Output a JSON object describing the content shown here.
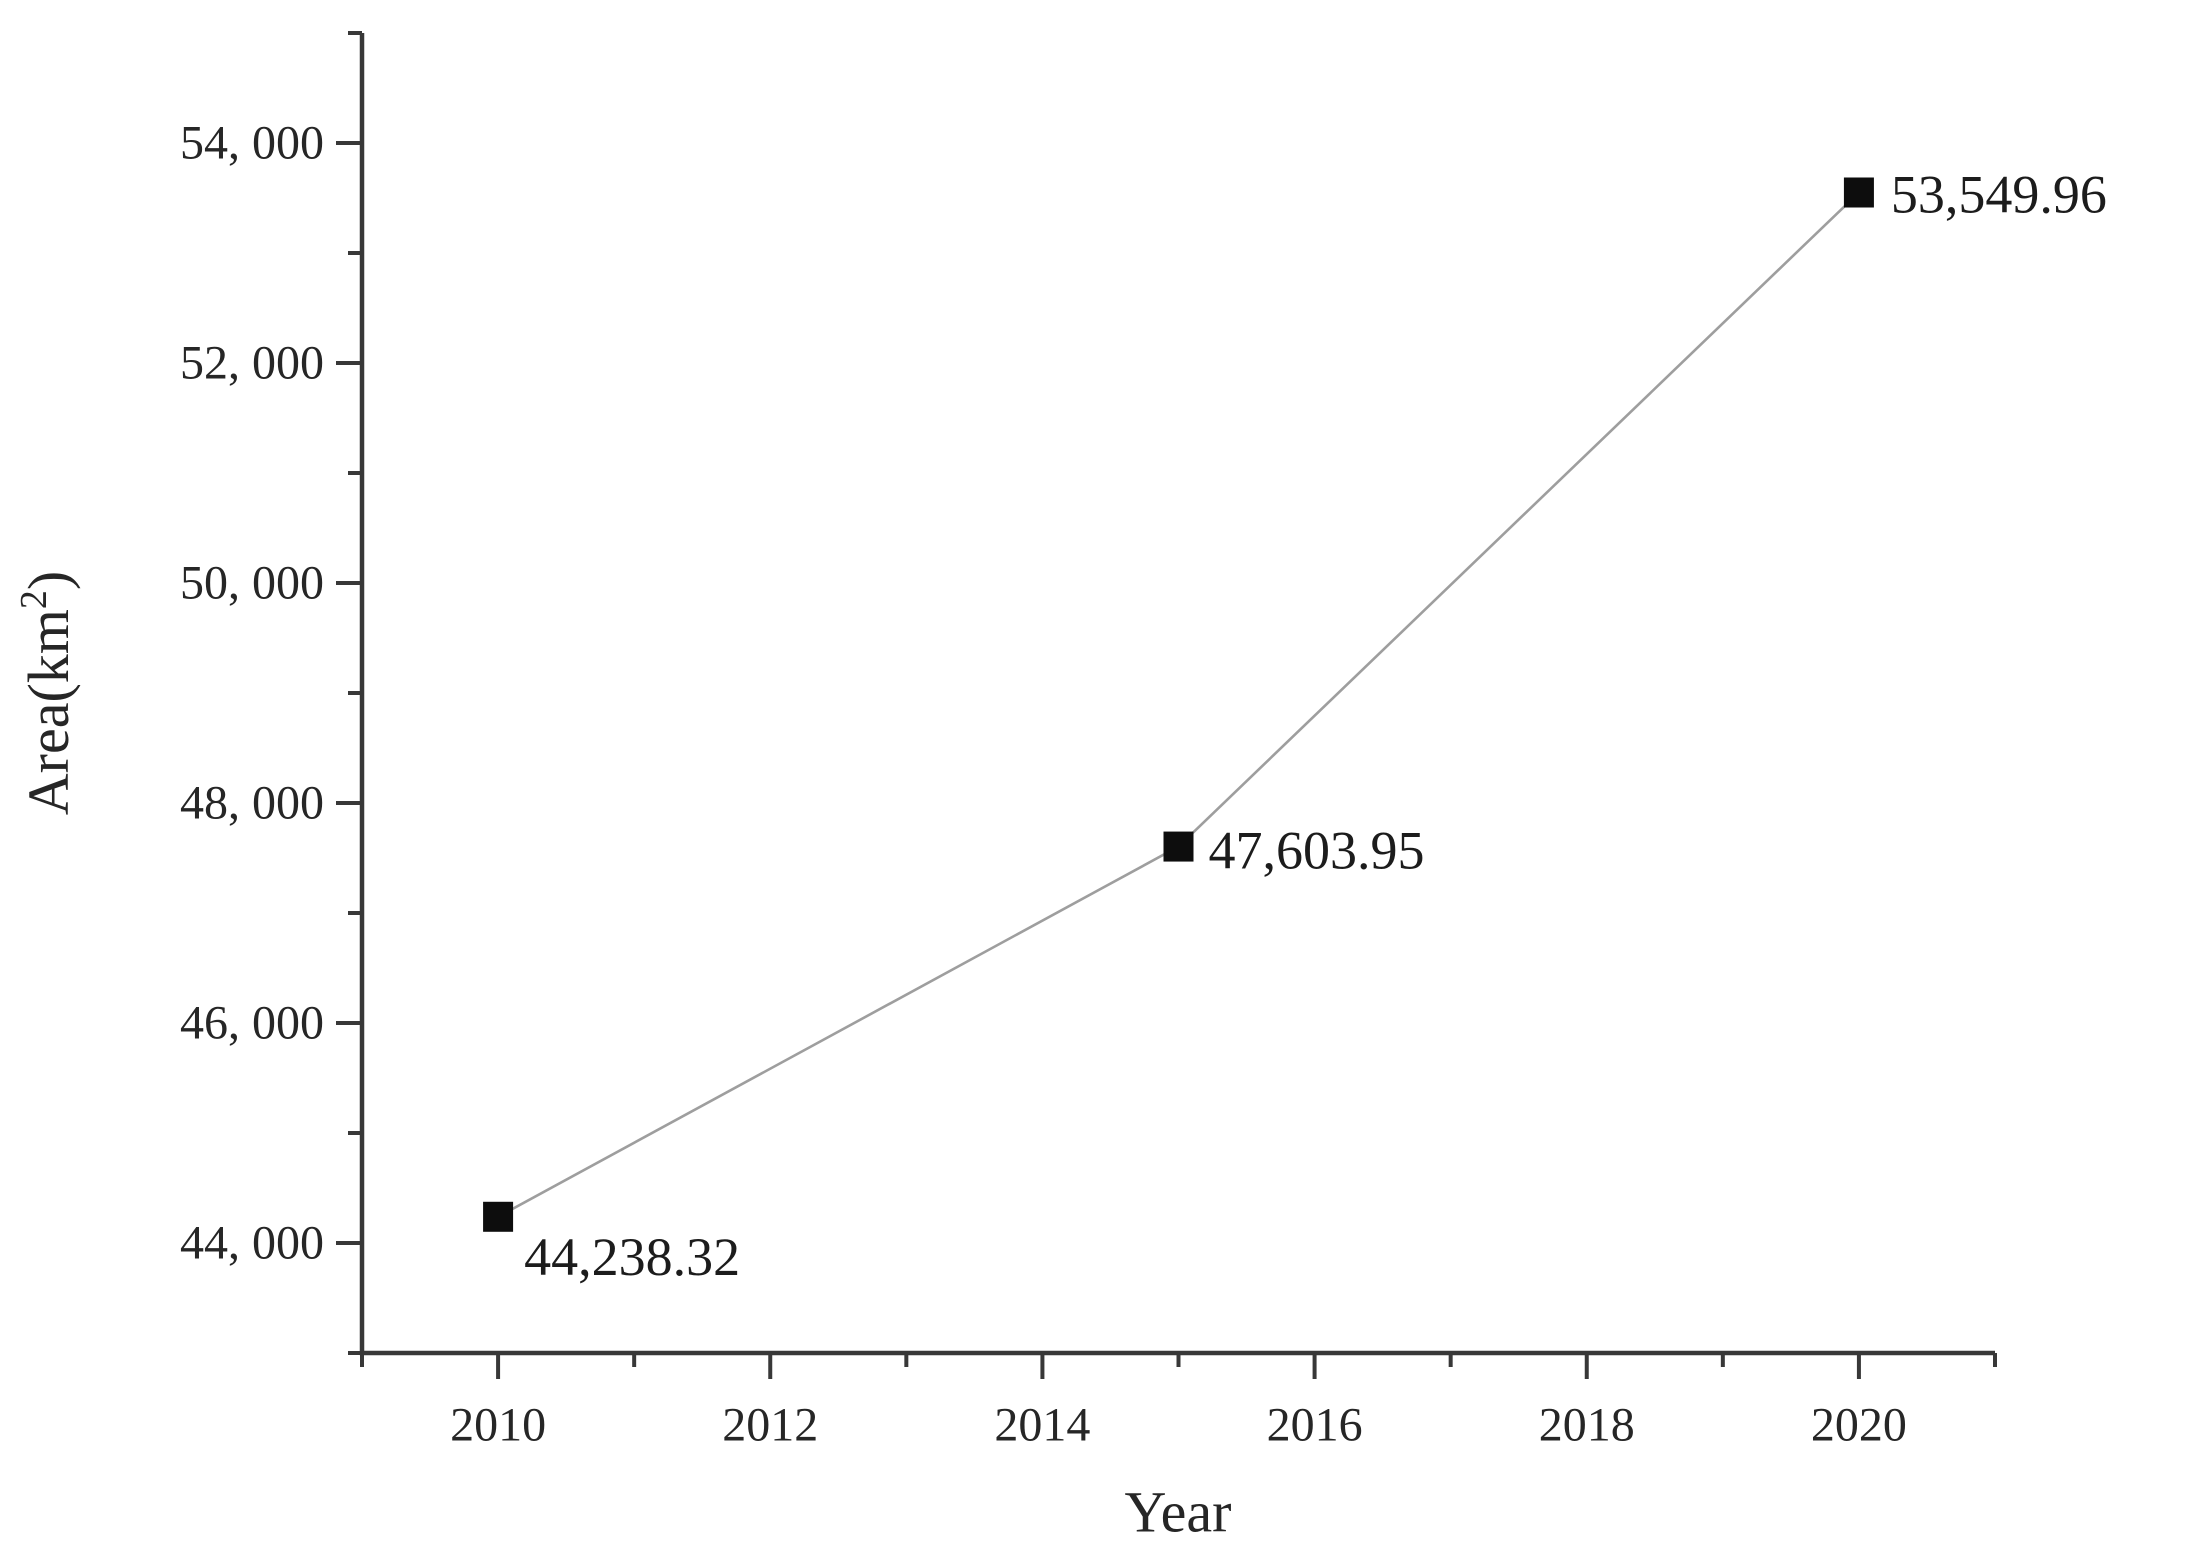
{
  "figure": {
    "background": "#ffffff"
  },
  "chart_data": {
    "type": "line",
    "title": "",
    "xlabel": "Year",
    "ylabel": "Area(km²)",
    "x": [
      2010,
      2015,
      2020
    ],
    "values": [
      44238.32,
      47603.95,
      53549.96
    ],
    "point_labels": [
      "44,238.32",
      "47,603.95",
      "53,549.96"
    ],
    "xlim": [
      2009,
      2021
    ],
    "ylim": [
      43000,
      55000
    ],
    "x_ticks": {
      "values": [
        2010,
        2012,
        2014,
        2016,
        2018,
        2020
      ],
      "labels": [
        "2010",
        "2012",
        "2014",
        "2016",
        "2018",
        "2020"
      ]
    },
    "x_minor_ticks": [
      2009,
      2011,
      2013,
      2015,
      2017,
      2019,
      2021
    ],
    "y_ticks": {
      "values": [
        44000,
        46000,
        48000,
        50000,
        52000,
        54000
      ],
      "labels": [
        "44, 000",
        "46, 000",
        "48, 000",
        "50, 000",
        "52, 000",
        "54, 000"
      ]
    },
    "y_minor_ticks": [
      43000,
      45000,
      47000,
      49000,
      51000,
      53000,
      55000
    ],
    "grid": false,
    "legend": null,
    "marker": "square",
    "colors": {
      "line": "#9e9e9e",
      "marker": "#0d0d0d",
      "axis": "#383838",
      "text": "#262626"
    }
  }
}
